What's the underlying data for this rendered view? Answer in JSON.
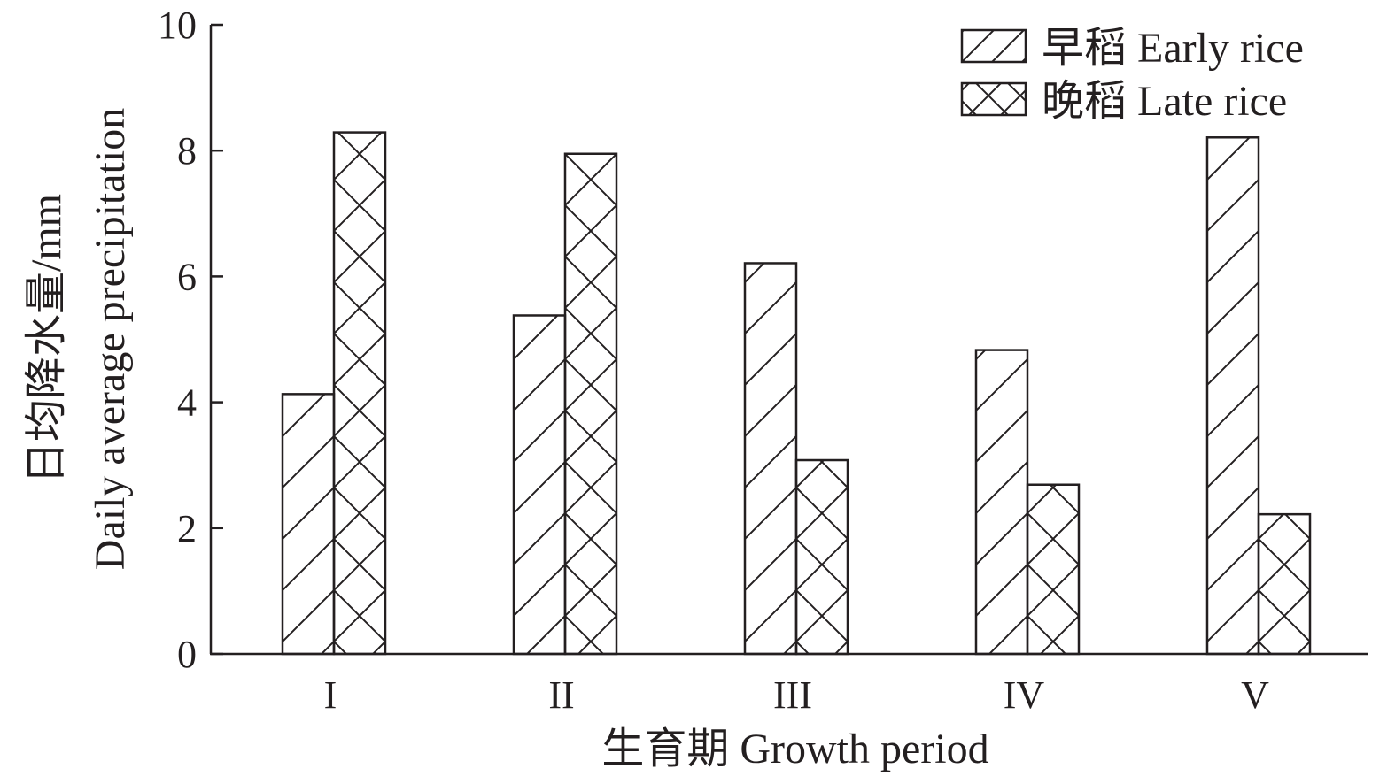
{
  "chart_data": {
    "type": "bar",
    "xlabel": "生育期 Growth period",
    "ylabel_line1": "日均降水量/mm",
    "ylabel_line2": "Daily average precipitation",
    "categories": [
      "I",
      "II",
      "III",
      "IV",
      "V"
    ],
    "series": [
      {
        "name": "早稻 Early rice",
        "pattern": "single-hatch",
        "values": [
          4.13,
          5.38,
          6.21,
          4.83,
          8.21
        ]
      },
      {
        "name": "晚稻 Late rice",
        "pattern": "cross-hatch",
        "values": [
          8.29,
          7.95,
          3.08,
          2.69,
          2.22
        ]
      }
    ],
    "ylim": [
      0,
      10
    ],
    "yticks": [
      0,
      2,
      4,
      6,
      8,
      10
    ],
    "grid": false,
    "legend_position": "top-right",
    "colors": {
      "stroke": "#231f20",
      "fill": "#ffffff"
    }
  }
}
